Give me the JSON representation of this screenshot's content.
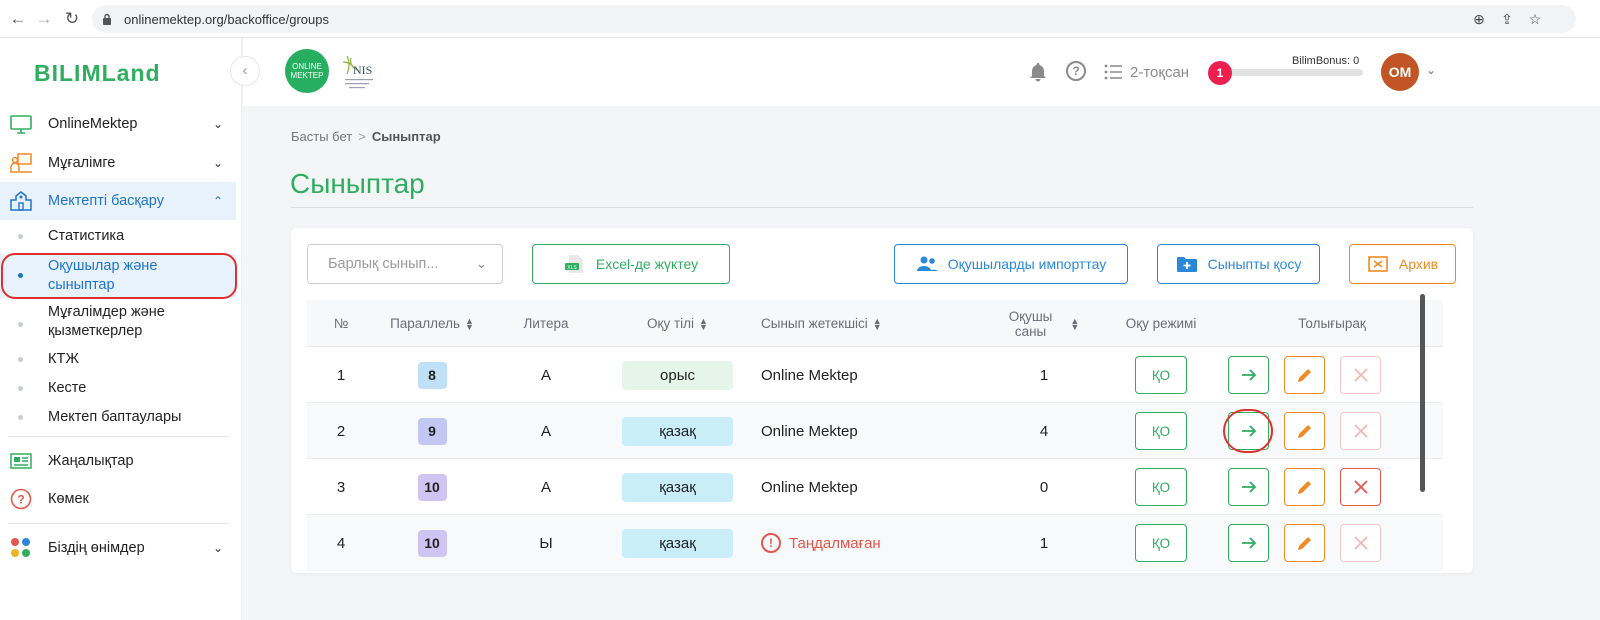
{
  "browser": {
    "url": "onlinemektep.org/backoffice/groups",
    "nav_back": "←",
    "nav_forward": "→",
    "nav_reload": "↻",
    "zoom_icon": "⊕",
    "share_icon": "⇪",
    "star_icon": "☆"
  },
  "sidebar": {
    "logo": "BILIMLand",
    "collapse": "‹",
    "items": [
      {
        "label": "OnlineMektep",
        "icon": "monitor-icon"
      },
      {
        "label": "Мұғалімге",
        "icon": "teacher-icon"
      },
      {
        "label": "Мектепті басқару",
        "icon": "school-icon"
      }
    ],
    "sub_items": [
      {
        "label": "Статистика"
      },
      {
        "label": "Оқушылар және сыныптар"
      },
      {
        "label": "Мұғалімдер және қызметкерлер"
      },
      {
        "label": "КТЖ"
      },
      {
        "label": "Кесте"
      },
      {
        "label": "Мектеп баптаулары"
      }
    ],
    "bottom_items": [
      {
        "label": "Жаңалықтар",
        "icon": "news-icon"
      },
      {
        "label": "Көмек",
        "icon": "help-circle-icon"
      },
      {
        "label": "Біздің өнімдер",
        "icon": "products-icon"
      }
    ]
  },
  "header": {
    "om_logo_line1": "ONLINE",
    "om_logo_line2": "MEKTEP",
    "quarter": "2-тоқсан",
    "notif_count": "1",
    "bonus_label": "BilimBonus: 0",
    "avatar": "OM",
    "help_symbol": "?"
  },
  "breadcrumb": {
    "home": "Басты бет",
    "sep": ">",
    "current": "Сыныптар"
  },
  "page": {
    "title": "Сыныптар"
  },
  "toolbar": {
    "filter_placeholder": "Барлық сынып...",
    "excel_label": "Excel-де жүктеу",
    "import_label": "Оқушыларды импорттау",
    "add_label": "Сыныпты қосу",
    "archive_label": "Архив"
  },
  "table": {
    "columns": {
      "num": "№",
      "parallel": "Параллель",
      "litera": "Литера",
      "lang": "Оқу тілі",
      "teacher": "Сынып жетекшісі",
      "count_line1": "Оқушы",
      "count_line2": "саны",
      "mode": "Оқу режимі",
      "more": "Толығырақ"
    },
    "rows": [
      {
        "num": "1",
        "parallel": "8",
        "litera": "А",
        "lang": "орыс",
        "teacher": "Online Mektep",
        "count": "1",
        "mode": "ҚО"
      },
      {
        "num": "2",
        "parallel": "9",
        "litera": "А",
        "lang": "қазақ",
        "teacher": "Online Mektep",
        "count": "4",
        "mode": "ҚО"
      },
      {
        "num": "3",
        "parallel": "10",
        "litera": "А",
        "lang": "қазақ",
        "teacher": "Online Mektep",
        "count": "0",
        "mode": "ҚО"
      },
      {
        "num": "4",
        "parallel": "10",
        "litera": "Ы",
        "lang": "қазақ",
        "teacher": "Таңдалмаған",
        "count": "1",
        "mode": "ҚО"
      }
    ]
  },
  "colors": {
    "brand_green": "#2fae60",
    "accent_blue": "#2b88d8",
    "archive_orange": "#f08a24",
    "danger_red": "#e4574e",
    "badge_8": "#bfe0f7",
    "badge_9": "#c3c7f3",
    "badge_10": "#cfc5f3",
    "lang_ru": "#e5f5e9",
    "lang_kz": "#c9edf9"
  }
}
